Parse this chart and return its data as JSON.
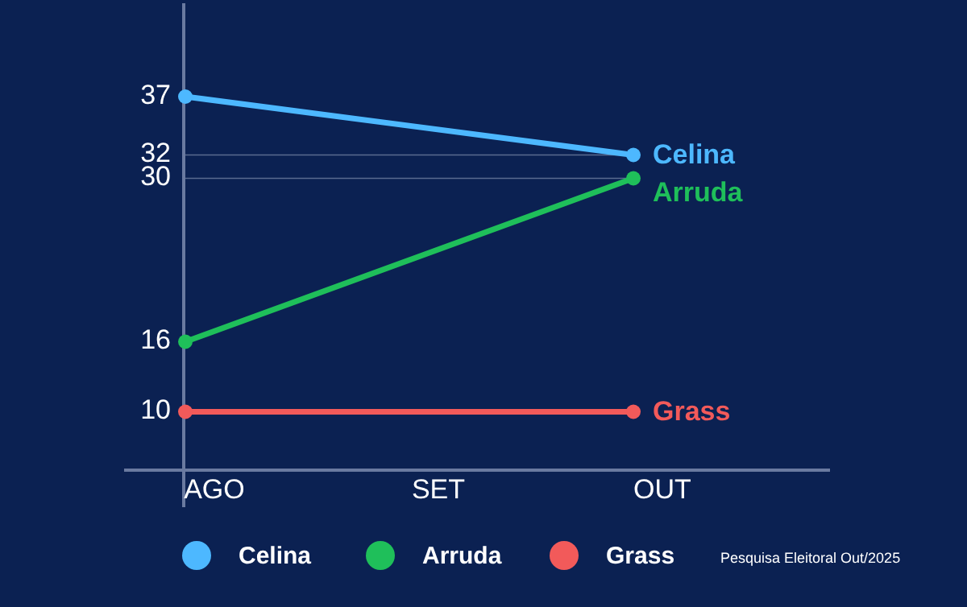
{
  "chart_data": {
    "type": "line",
    "categories": [
      "AGO",
      "SET",
      "OUT"
    ],
    "series": [
      {
        "name": "Celina",
        "color": "#4db8ff",
        "values": [
          37,
          null,
          32
        ]
      },
      {
        "name": "Arruda",
        "color": "#1fbf5a",
        "values": [
          16,
          null,
          30
        ]
      },
      {
        "name": "Grass",
        "color": "#f25a5a",
        "values": [
          10,
          null,
          10
        ]
      }
    ],
    "ylim": [
      5,
      45
    ],
    "yticks": [
      10,
      16,
      30,
      32,
      37
    ],
    "grid": false,
    "legend": "bottom",
    "marker": "circle",
    "line_style": "solid",
    "ref_lines": [
      {
        "axis": "y",
        "value": 32
      },
      {
        "axis": "y",
        "value": 30
      }
    ],
    "annotations": [
      "Pesquisa Eleitoral Out/2025"
    ]
  }
}
